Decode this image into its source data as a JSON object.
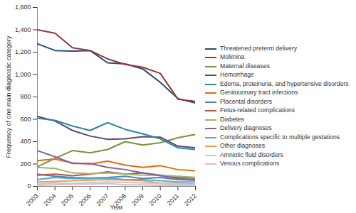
{
  "chart_data": {
    "type": "line",
    "x_label": "Year",
    "y_label": "Frequency of one main diagnostic category",
    "x": [
      2003,
      2004,
      2005,
      2006,
      2007,
      2008,
      2009,
      2010,
      2011,
      2012
    ],
    "xlim": [
      2003,
      2012
    ],
    "xticks": [
      2003,
      2004,
      2005,
      2006,
      2007,
      2008,
      2009,
      2010,
      2011,
      2012
    ],
    "ylim": [
      0,
      1600
    ],
    "yticks": [
      0,
      200,
      400,
      600,
      800,
      {
        "value": 1000,
        "label": "1,000"
      },
      {
        "value": 1200,
        "label": "1,200"
      },
      {
        "value": 1400,
        "label": "1,400"
      },
      {
        "value": 1600,
        "label": "1,600"
      }
    ],
    "grid": false,
    "legend": "right",
    "series": [
      {
        "name": "Threatened preterm delivery",
        "color": "#1f4e79",
        "values": [
          1275,
          1215,
          1210,
          1215,
          1105,
          1095,
          1050,
          930,
          785,
          745
        ]
      },
      {
        "name": "Molimina",
        "color": "#953735",
        "values": [
          1400,
          1370,
          1240,
          1215,
          1140,
          1090,
          1065,
          1010,
          780,
          760
        ]
      },
      {
        "name": "Maternal diseases",
        "color": "#77933c",
        "values": [
          175,
          250,
          320,
          300,
          330,
          400,
          370,
          390,
          435,
          465
        ]
      },
      {
        "name": "Hemorrhage",
        "color": "#5f497a",
        "values": [
          625,
          585,
          500,
          450,
          420,
          425,
          445,
          440,
          360,
          345
        ]
      },
      {
        "name": "Edema, proteinuria, and hypertensive disorders",
        "color": "#31859c",
        "values": [
          610,
          590,
          540,
          500,
          570,
          510,
          470,
          425,
          345,
          330
        ]
      },
      {
        "name": "Genitourinary tract infections",
        "color": "#e46c0a",
        "values": [
          230,
          245,
          210,
          200,
          225,
          190,
          170,
          185,
          150,
          140
        ]
      },
      {
        "name": "Placental disorders",
        "color": "#4f81bd",
        "values": [
          110,
          90,
          80,
          75,
          80,
          90,
          70,
          80,
          60,
          55
        ]
      },
      {
        "name": "Fetus-related complications",
        "color": "#c0504d",
        "values": [
          100,
          110,
          95,
          110,
          130,
          110,
          120,
          100,
          80,
          75
        ]
      },
      {
        "name": "Diabetes",
        "color": "#9bbb59",
        "values": [
          170,
          160,
          120,
          115,
          120,
          110,
          100,
          100,
          90,
          80
        ]
      },
      {
        "name": "Delivery diagnoses",
        "color": "#8064a2",
        "values": [
          320,
          265,
          205,
          205,
          170,
          150,
          120,
          95,
          70,
          60
        ]
      },
      {
        "name": "Complications specific to multiple gestations",
        "color": "#4bacc6",
        "values": [
          60,
          80,
          70,
          70,
          75,
          60,
          60,
          50,
          40,
          40
        ]
      },
      {
        "name": "Other diagnoses",
        "color": "#f79646",
        "values": [
          40,
          45,
          50,
          55,
          60,
          55,
          50,
          30,
          25,
          20
        ]
      },
      {
        "name": "Amniotic fluid disorders",
        "color": "#b9cde5",
        "values": [
          20,
          30,
          25,
          35,
          40,
          35,
          30,
          25,
          20,
          15
        ]
      },
      {
        "name": "Venous complications",
        "color": "#e6b9b8",
        "values": [
          10,
          15,
          20,
          20,
          25,
          15,
          15,
          10,
          10,
          10
        ]
      }
    ]
  }
}
